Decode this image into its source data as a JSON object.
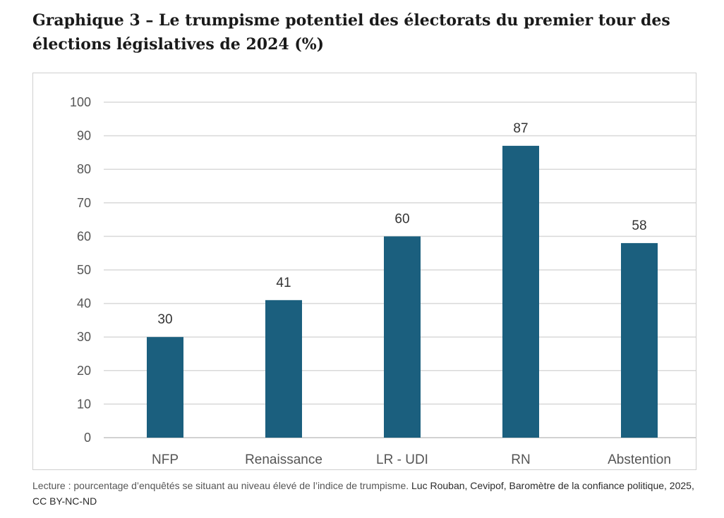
{
  "title": "Graphique 3 – Le trumpisme potentiel des électorats du premier tour des élections législatives de 2024 (%)",
  "caption": {
    "reading": "Lecture : pourcentage d’enquêtés se situant au niveau élevé de l’indice de trumpisme.",
    "credit": "Luc Rouban, Cevipof, Baromètre de la confiance politique, 2025, CC BY-NC-ND"
  },
  "chart_data": {
    "type": "bar",
    "title": "",
    "xlabel": "",
    "ylabel": "",
    "categories": [
      "NFP",
      "Renaissance",
      "LR - UDI",
      "RN",
      "Abstention"
    ],
    "values": [
      30,
      41,
      60,
      87,
      58
    ],
    "ylim": [
      0,
      100
    ],
    "yticks": [
      0,
      10,
      20,
      30,
      40,
      50,
      60,
      70,
      80,
      90,
      100
    ],
    "data_labels": true,
    "grid": true,
    "legend": "none",
    "bar_color": "#1b5f7e"
  }
}
